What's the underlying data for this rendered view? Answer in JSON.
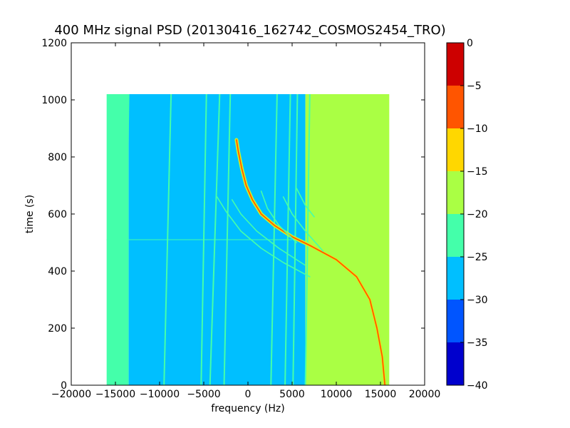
{
  "chart_data": {
    "type": "heatmap",
    "title": "400 MHz signal PSD (20130416_162742_COSMOS2454_TRO)",
    "xlabel": "frequency (Hz)",
    "ylabel": "time (s)",
    "xlim": [
      -20000,
      20000
    ],
    "ylim": [
      0,
      1200
    ],
    "xticks": [
      "−20000",
      "−15000",
      "−10000",
      "−5000",
      "0",
      "5000",
      "10000",
      "15000",
      "20000"
    ],
    "yticks": [
      "0",
      "200",
      "400",
      "600",
      "800",
      "1000",
      "1200"
    ],
    "data_extent": {
      "x": [
        -16000,
        16000
      ],
      "y": [
        0,
        1020
      ]
    },
    "colorbar": {
      "range": [
        -40,
        0
      ],
      "ticks": [
        "0",
        "−5",
        "−10",
        "−15",
        "−20",
        "−25",
        "−30",
        "−35",
        "−40"
      ],
      "levels": [
        {
          "from": -40,
          "to": -35,
          "color": "#0000cd"
        },
        {
          "from": -35,
          "to": -30,
          "color": "#0055ff"
        },
        {
          "from": -30,
          "to": -25,
          "color": "#00bfff"
        },
        {
          "from": -25,
          "to": -20,
          "color": "#44ffaa"
        },
        {
          "from": -20,
          "to": -15,
          "color": "#aaff44"
        },
        {
          "from": -15,
          "to": -10,
          "color": "#ffd700"
        },
        {
          "from": -10,
          "to": -5,
          "color": "#ff5500"
        },
        {
          "from": -5,
          "to": 0,
          "color": "#cd0000"
        }
      ]
    },
    "background_levels": [
      {
        "x": [
          -16000,
          -13500
        ],
        "level": -20
      },
      {
        "x": [
          -13500,
          6500
        ],
        "level": -27.5
      },
      {
        "x": [
          6500,
          16000
        ],
        "level": -17.5
      }
    ],
    "traces": [
      {
        "name": "strong-doppler-trace",
        "level": -7.5,
        "points": [
          [
            15500,
            0
          ],
          [
            15200,
            100
          ],
          [
            14600,
            200
          ],
          [
            13800,
            300
          ],
          [
            12300,
            380
          ],
          [
            10000,
            440
          ],
          [
            7000,
            490
          ],
          [
            5000,
            520
          ],
          [
            3000,
            560
          ],
          [
            1500,
            600
          ],
          [
            500,
            650
          ],
          [
            -200,
            700
          ],
          [
            -700,
            760
          ],
          [
            -1100,
            820
          ],
          [
            -1300,
            860
          ]
        ]
      },
      {
        "name": "faint-trace-1",
        "level": -22.5,
        "points": [
          [
            7000,
            380
          ],
          [
            4000,
            430
          ],
          [
            1500,
            480
          ],
          [
            -800,
            540
          ],
          [
            -2500,
            610
          ],
          [
            -3500,
            660
          ]
        ]
      },
      {
        "name": "faint-trace-2",
        "level": -22.5,
        "points": [
          [
            6500,
            420
          ],
          [
            3500,
            480
          ],
          [
            1000,
            540
          ],
          [
            -800,
            600
          ],
          [
            -1800,
            650
          ]
        ]
      },
      {
        "name": "faint-trace-3",
        "level": -22.5,
        "points": [
          [
            8500,
            470
          ],
          [
            6500,
            540
          ],
          [
            5000,
            600
          ],
          [
            4000,
            660
          ]
        ]
      },
      {
        "name": "faint-trace-4",
        "level": -22.5,
        "points": [
          [
            7500,
            590
          ],
          [
            6500,
            630
          ],
          [
            5500,
            690
          ]
        ]
      },
      {
        "name": "faint-trace-5",
        "level": -22.5,
        "points": [
          [
            5500,
            500
          ],
          [
            3500,
            560
          ],
          [
            2200,
            620
          ],
          [
            1500,
            680
          ]
        ]
      }
    ],
    "vertical_lines": [
      {
        "level": -22.5,
        "x_bottom": -14000,
        "x_top": -13500
      },
      {
        "level": -22.5,
        "x_bottom": -9500,
        "x_top": -8700
      },
      {
        "level": -22.5,
        "x_bottom": -5300,
        "x_top": -4700
      },
      {
        "level": -22.5,
        "x_bottom": -4300,
        "x_top": -3200
      },
      {
        "level": -22.5,
        "x_bottom": -2700,
        "x_top": -2000
      },
      {
        "level": -22.5,
        "x_bottom": 2600,
        "x_top": 3300
      },
      {
        "level": -22.5,
        "x_bottom": 4200,
        "x_top": 4800
      },
      {
        "level": -22.5,
        "x_bottom": 5100,
        "x_top": 5600
      },
      {
        "level": -22.5,
        "x_bottom": 6500,
        "x_top": 7000
      }
    ],
    "horizontal_lines": [
      {
        "level": -22.5,
        "y": 510,
        "x": [
          -16000,
          5000
        ]
      }
    ]
  }
}
